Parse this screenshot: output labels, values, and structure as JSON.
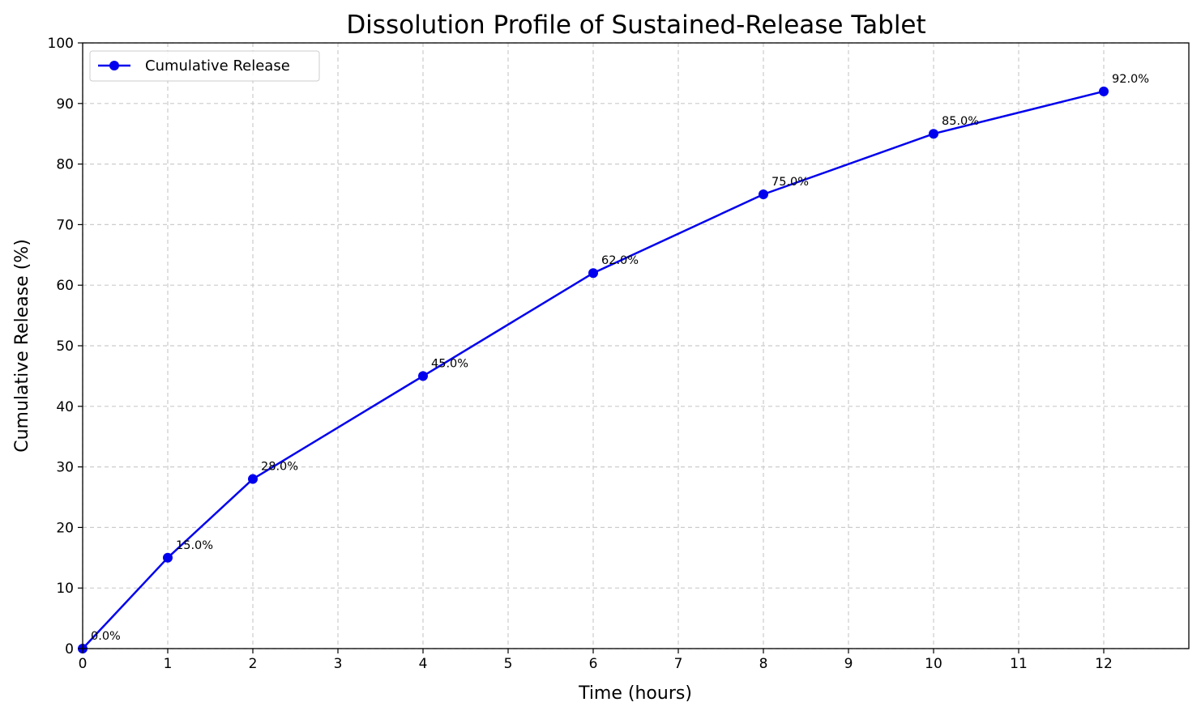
{
  "chart_data": {
    "type": "line",
    "title": "Dissolution Profile of Sustained-Release Tablet",
    "xlabel": "Time (hours)",
    "ylabel": "Cumulative Release (%)",
    "xlim": [
      0,
      13
    ],
    "ylim": [
      0,
      100
    ],
    "x_ticks": [
      0,
      1,
      2,
      3,
      4,
      5,
      6,
      7,
      8,
      9,
      10,
      11,
      12
    ],
    "y_ticks": [
      0,
      10,
      20,
      30,
      40,
      50,
      60,
      70,
      80,
      90,
      100
    ],
    "grid": true,
    "legend_position": "top-left",
    "series": [
      {
        "name": "Cumulative Release",
        "color": "#0000ee",
        "marker": "circle",
        "x": [
          0,
          1,
          2,
          4,
          6,
          8,
          10,
          12
        ],
        "y": [
          0,
          15,
          28,
          45,
          62,
          75,
          85,
          92
        ],
        "labels": [
          "0.0%",
          "15.0%",
          "28.0%",
          "45.0%",
          "62.0%",
          "75.0%",
          "85.0%",
          "92.0%"
        ]
      }
    ]
  }
}
